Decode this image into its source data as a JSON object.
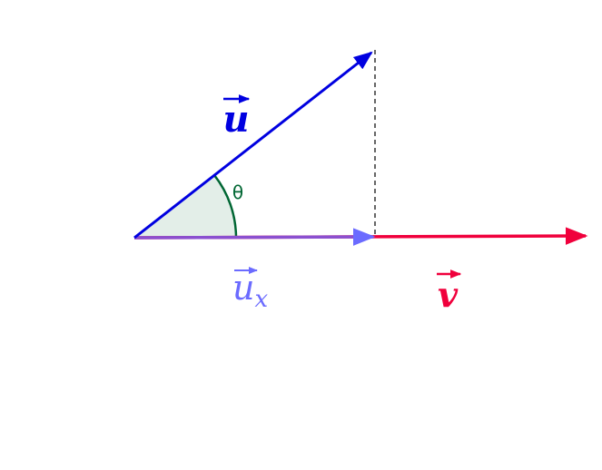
{
  "vectors": {
    "u": {
      "label": "u"
    },
    "v": {
      "label": "v"
    }
  },
  "angle": {
    "label": "θ"
  },
  "projection": {
    "label": "u",
    "subscript": "x"
  }
}
